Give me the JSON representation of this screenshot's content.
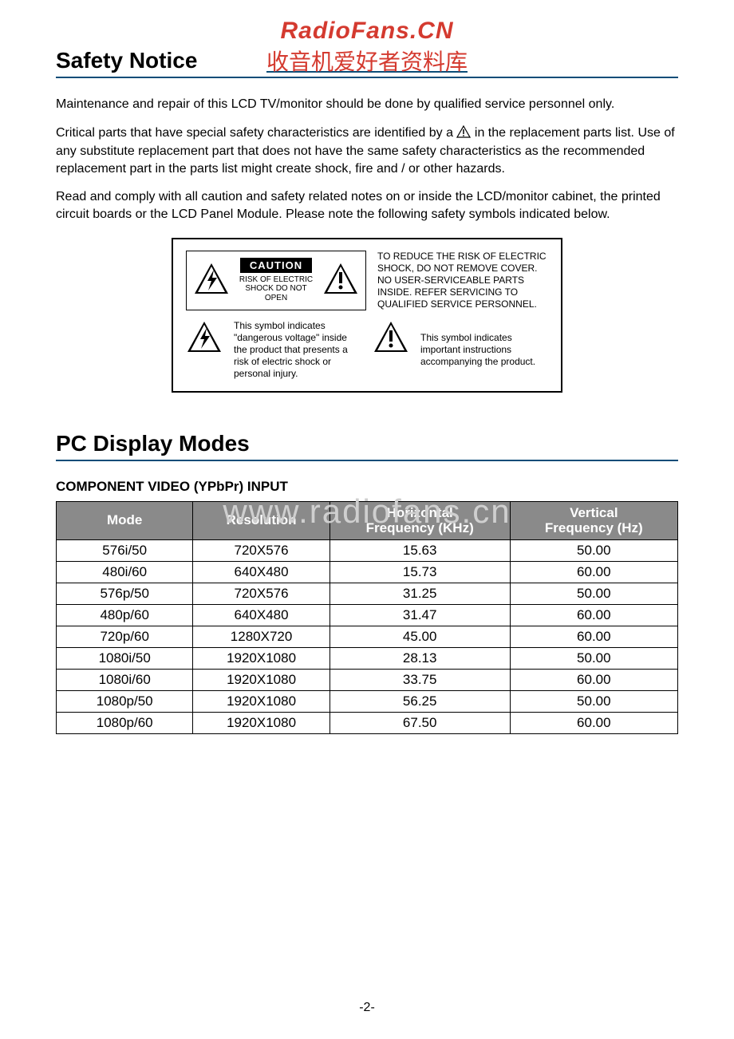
{
  "watermark": {
    "line1": "RadioFans.CN",
    "line2": "收音机爱好者资料库",
    "mid": "www.radiofans.cn"
  },
  "headings": {
    "safety": "Safety Notice",
    "pc_modes": "PC Display Modes",
    "component": "COMPONENT VIDEO (YPbPr) INPUT"
  },
  "paragraphs": {
    "p1": "Maintenance and repair of this LCD TV/monitor should be done by qualified service personnel only.",
    "p2a": "Critical parts that have special safety characteristics are identified by a ",
    "p2b": " in the replacement parts list.  Use of any substitute replacement part that does not have the same safety characteristics as the recommended replacement part in the parts list might create shock, fire and / or other hazards.",
    "p3": "Read and comply with all caution and safety related notes on or inside the LCD/monitor cabinet, the printed circuit boards or the LCD Panel Module. Please note the following safety symbols indicated below."
  },
  "caution": {
    "label": "CAUTION",
    "risk": "RISK OF ELECTRIC SHOCK DO NOT OPEN",
    "reduce": "TO REDUCE THE RISK OF ELECTRIC SHOCK, DO NOT REMOVE COVER. NO USER-SERVICEABLE PARTS INSIDE. REFER SERVICING TO QUALIFIED SERVICE PERSONNEL.",
    "lightning": "This symbol indicates \"dangerous voltage\" inside the product that presents a risk of electric shock or personal injury.",
    "exclaim": "This symbol indicates important instructions accompanying the product."
  },
  "table": {
    "headers": {
      "mode": "Mode",
      "resolution": "Resolution",
      "hfreq_l1": "Horizontal",
      "hfreq_l2": "Frequency (KHz)",
      "vfreq_l1": "Vertical",
      "vfreq_l2": "Frequency (Hz)"
    },
    "col_widths": [
      "22%",
      "22%",
      "29%",
      "27%"
    ],
    "header_bg": "#8a8a8a",
    "header_fg": "#ffffff",
    "border_color": "#000000",
    "rows": [
      {
        "mode": "576i/50",
        "res": "720X576",
        "h": "15.63",
        "v": "50.00"
      },
      {
        "mode": "480i/60",
        "res": "640X480",
        "h": "15.73",
        "v": "60.00"
      },
      {
        "mode": "576p/50",
        "res": "720X576",
        "h": "31.25",
        "v": "50.00"
      },
      {
        "mode": "480p/60",
        "res": "640X480",
        "h": "31.47",
        "v": "60.00"
      },
      {
        "mode": "720p/60",
        "res": "1280X720",
        "h": "45.00",
        "v": "60.00"
      },
      {
        "mode": "1080i/50",
        "res": "1920X1080",
        "h": "28.13",
        "v": "50.00"
      },
      {
        "mode": "1080i/60",
        "res": "1920X1080",
        "h": "33.75",
        "v": "60.00"
      },
      {
        "mode": "1080p/50",
        "res": "1920X1080",
        "h": "56.25",
        "v": "50.00"
      },
      {
        "mode": "1080p/60",
        "res": "1920X1080",
        "h": "67.50",
        "v": "60.00"
      }
    ]
  },
  "page_number": "-2-",
  "colors": {
    "rule": "#0b4d78",
    "watermark_red": "#d43a2f",
    "watermark_grey": "#cfcfcf"
  }
}
